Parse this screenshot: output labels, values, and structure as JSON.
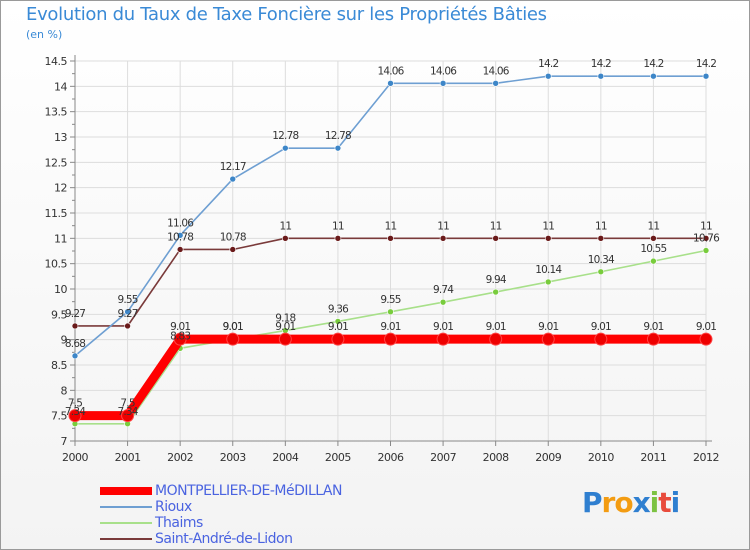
{
  "colors": {
    "title": "#3a8ad6",
    "axis": "#888888",
    "grid": "#dddddd",
    "legend_text": "#4a63e0"
  },
  "chart_data": {
    "type": "line",
    "title": "Evolution du Taux de Taxe Foncière sur les Propriétés Bâties",
    "ylabel": "(en %)",
    "xlabel": "",
    "ylim": [
      7,
      14.5
    ],
    "yticks": [
      "7",
      "7.5",
      "8",
      "8.5",
      "9",
      "9.5",
      "10",
      "10.5",
      "11",
      "11.5",
      "12",
      "12.5",
      "13",
      "13.5",
      "14",
      "14.5"
    ],
    "categories": [
      "2000",
      "2001",
      "2002",
      "2003",
      "2004",
      "2005",
      "2006",
      "2007",
      "2008",
      "2009",
      "2010",
      "2011",
      "2012"
    ],
    "series": [
      {
        "name": "MONTPELLIER-DE-MéDILLAN",
        "color": "#ff0000",
        "marker_color": "#ee0000",
        "values": [
          7.5,
          7.5,
          9.01,
          9.01,
          9.01,
          9.01,
          9.01,
          9.01,
          9.01,
          9.01,
          9.01,
          9.01,
          9.01
        ],
        "labels": [
          "7.5",
          "7.5",
          "9.01",
          "9.01",
          "9.01",
          "9.01",
          "9.01",
          "9.01",
          "9.01",
          "9.01",
          "9.01",
          "9.01",
          "9.01"
        ]
      },
      {
        "name": "Rioux",
        "color": "#6e9fd2",
        "marker_color": "#3d86c8",
        "values": [
          8.68,
          9.55,
          11.06,
          12.17,
          12.78,
          12.78,
          14.06,
          14.06,
          14.06,
          14.2,
          14.2,
          14.2,
          14.2
        ],
        "labels": [
          "8.68",
          "9.55",
          "11.06",
          "12.17",
          "12.78",
          "12.78",
          "14.06",
          "14.06",
          "14.06",
          "14.2",
          "14.2",
          "14.2",
          "14.2"
        ]
      },
      {
        "name": "Thaims",
        "color": "#a8e08a",
        "marker_color": "#78cc3c",
        "values": [
          7.34,
          7.34,
          8.83,
          9.01,
          9.18,
          9.36,
          9.55,
          9.74,
          9.94,
          10.14,
          10.34,
          10.55,
          10.76
        ],
        "labels": [
          "7.34",
          "7.34",
          "8.83",
          "9.01",
          "9.18",
          "9.36",
          "9.55",
          "9.74",
          "9.94",
          "10.14",
          "10.34",
          "10.55",
          "10.76"
        ]
      },
      {
        "name": "Saint-André-de-Lidon",
        "color": "#7a3a3a",
        "marker_color": "#6a1a1a",
        "values": [
          9.27,
          9.27,
          10.78,
          10.78,
          11,
          11,
          11,
          11,
          11,
          11,
          11,
          11,
          11
        ],
        "labels": [
          "9.27",
          "9.27",
          "10.78",
          "10.78",
          "11",
          "11",
          "11",
          "11",
          "11",
          "11",
          "11",
          "11",
          "11"
        ]
      }
    ]
  },
  "legend": {
    "items": [
      {
        "label": "MONTPELLIER-DE-MéDILLAN",
        "color": "#ff0000"
      },
      {
        "label": "Rioux",
        "color": "#6e9fd2"
      },
      {
        "label": "Thaims",
        "color": "#a8e08a"
      },
      {
        "label": "Saint-André-de-Lidon",
        "color": "#7a3a3a"
      }
    ]
  },
  "logo": {
    "letters": [
      "P",
      "r",
      "o",
      "x",
      "i",
      "t",
      "i"
    ],
    "colors": [
      "#2f7fd0",
      "#f39c12",
      "#f39c12",
      "#2f7fd0",
      "#7cc242",
      "#e84b3c",
      "#2f7fd0"
    ]
  }
}
